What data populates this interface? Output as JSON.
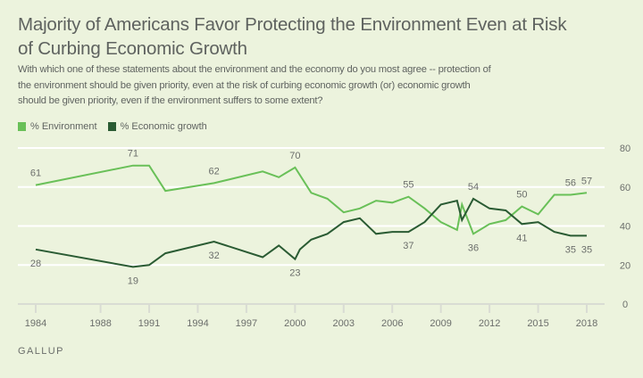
{
  "title": "Majority of Americans Favor Protecting the Environment Even at Risk of Curbing Economic Growth",
  "subtitle": "With which one of these statements about the environment and the economy do you most agree -- protection of the environment should be given priority, even at the risk of curbing economic growth (or) economic growth should be given priority, even if the environment suffers to some extent?",
  "source": "GALLUP",
  "colors": {
    "environment": "#69c058",
    "economic": "#2a5b33",
    "background": "#ecf3dd",
    "grid": "#ffffff",
    "axis": "#d9dcd3",
    "text": "#6b6e6b"
  },
  "chart_data": {
    "type": "line",
    "title": "Majority of Americans Favor Protecting the Environment Even at Risk of Curbing Economic Growth",
    "xlabel": "",
    "ylabel": "",
    "xlim": [
      1984,
      2018
    ],
    "ylim": [
      0,
      80
    ],
    "x_ticks": [
      1984,
      1988,
      1991,
      1994,
      1997,
      2000,
      2003,
      2006,
      2009,
      2012,
      2015,
      2018
    ],
    "y_ticks": [
      0,
      20,
      40,
      60,
      80
    ],
    "grid": true,
    "legend_position": "top-left",
    "series": [
      {
        "name": "% Environment",
        "color": "#69c058",
        "x": [
          1984,
          1990,
          1991,
          1992,
          1995,
          1998,
          1999,
          1999.4,
          2000,
          2001,
          2002,
          2003,
          2004,
          2005,
          2006,
          2007,
          2008,
          2009,
          2010,
          2010.3,
          2011,
          2012,
          2013,
          2014,
          2015,
          2016,
          2017,
          2018
        ],
        "values": [
          61,
          71,
          71,
          58,
          62,
          68,
          65,
          67,
          70,
          57,
          54,
          47,
          49,
          53,
          52,
          55,
          49,
          42,
          38,
          51,
          36,
          41,
          43,
          50,
          46,
          56,
          56,
          57
        ]
      },
      {
        "name": "% Economic growth",
        "color": "#2a5b33",
        "x": [
          1984,
          1990,
          1991,
          1992,
          1995,
          1998,
          1999,
          2000,
          2000.3,
          2001,
          2002,
          2003,
          2004,
          2005,
          2006,
          2007,
          2008,
          2009,
          2010,
          2010.3,
          2011,
          2012,
          2013,
          2014,
          2015,
          2016,
          2017,
          2018
        ],
        "values": [
          28,
          19,
          20,
          26,
          32,
          24,
          30,
          23,
          28,
          33,
          36,
          42,
          44,
          36,
          37,
          37,
          42,
          51,
          53,
          43,
          54,
          49,
          48,
          41,
          42,
          37,
          35,
          35
        ]
      }
    ],
    "annotations": [
      {
        "series": 0,
        "x": 1984,
        "value": 61,
        "text": "61",
        "pos": "above"
      },
      {
        "series": 0,
        "x": 1990,
        "value": 71,
        "text": "71",
        "pos": "above"
      },
      {
        "series": 0,
        "x": 1995,
        "value": 62,
        "text": "62",
        "pos": "above"
      },
      {
        "series": 0,
        "x": 2000,
        "value": 70,
        "text": "70",
        "pos": "above"
      },
      {
        "series": 0,
        "x": 2007,
        "value": 55,
        "text": "55",
        "pos": "above"
      },
      {
        "series": 0,
        "x": 2011,
        "value": 36,
        "text": "36",
        "pos": "below"
      },
      {
        "series": 0,
        "x": 2014,
        "value": 50,
        "text": "50",
        "pos": "above"
      },
      {
        "series": 0,
        "x": 2017,
        "value": 56,
        "text": "56",
        "pos": "above"
      },
      {
        "series": 0,
        "x": 2018,
        "value": 57,
        "text": "57",
        "pos": "above"
      },
      {
        "series": 1,
        "x": 1984,
        "value": 28,
        "text": "28",
        "pos": "below"
      },
      {
        "series": 1,
        "x": 1990,
        "value": 19,
        "text": "19",
        "pos": "below"
      },
      {
        "series": 1,
        "x": 1995,
        "value": 32,
        "text": "32",
        "pos": "below"
      },
      {
        "series": 1,
        "x": 2000,
        "value": 23,
        "text": "23",
        "pos": "below"
      },
      {
        "series": 1,
        "x": 2007,
        "value": 37,
        "text": "37",
        "pos": "below"
      },
      {
        "series": 1,
        "x": 2011,
        "value": 54,
        "text": "54",
        "pos": "above"
      },
      {
        "series": 1,
        "x": 2014,
        "value": 41,
        "text": "41",
        "pos": "below"
      },
      {
        "series": 1,
        "x": 2017,
        "value": 35,
        "text": "35",
        "pos": "below"
      },
      {
        "series": 1,
        "x": 2018,
        "value": 35,
        "text": "35",
        "pos": "below"
      }
    ]
  },
  "legend": [
    {
      "label": "% Environment",
      "color": "#69c058"
    },
    {
      "label": "% Economic growth",
      "color": "#2a5b33"
    }
  ]
}
